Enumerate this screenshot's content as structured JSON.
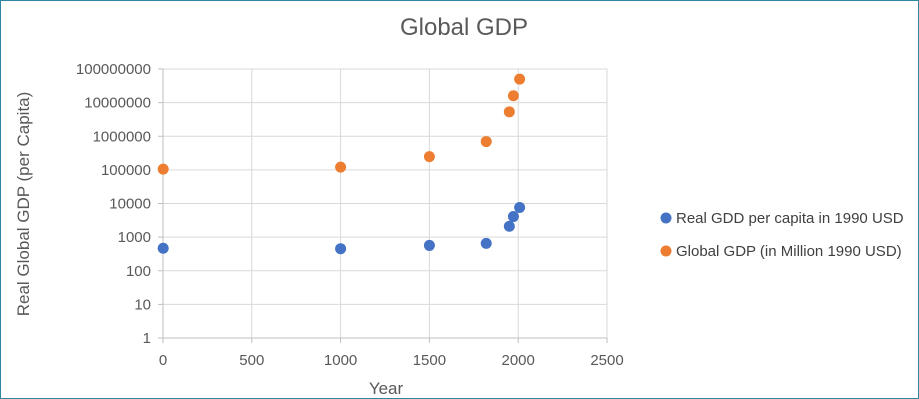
{
  "chart_data": {
    "type": "scatter",
    "title": "Global GDP",
    "xlabel": "Year",
    "ylabel": "Real Global GDP (per Capita)",
    "xlim": [
      0,
      2500
    ],
    "ylim": [
      1,
      100000000
    ],
    "yscale": "log",
    "xticks": [
      0,
      500,
      1000,
      1500,
      2000,
      2500
    ],
    "xtick_labels": [
      "0",
      "500",
      "1000",
      "1500",
      "2000",
      "2500"
    ],
    "yticks": [
      1,
      10,
      100,
      1000,
      10000,
      100000,
      1000000,
      10000000,
      100000000
    ],
    "ytick_labels": [
      "1",
      "10",
      "100",
      "1000",
      "10000",
      "100000",
      "1000000",
      "10000000",
      "100000000"
    ],
    "grid": true,
    "legend_position": "right",
    "series": [
      {
        "name": "Real GDD per capita in 1990 USD",
        "color": "#4472c4",
        "x": [
          1,
          1000,
          1500,
          1820,
          1950,
          1973,
          2008
        ],
        "y": [
          467,
          453,
          566,
          651,
          2111,
          4091,
          7614
        ]
      },
      {
        "name": "Global GDP (in Million 1990 USD)",
        "color": "#ed7d31",
        "x": [
          1,
          1000,
          1500,
          1820,
          1950,
          1973,
          2008
        ],
        "y": [
          105000,
          121000,
          248000,
          695000,
          5330000,
          16000000,
          50000000
        ]
      }
    ]
  }
}
